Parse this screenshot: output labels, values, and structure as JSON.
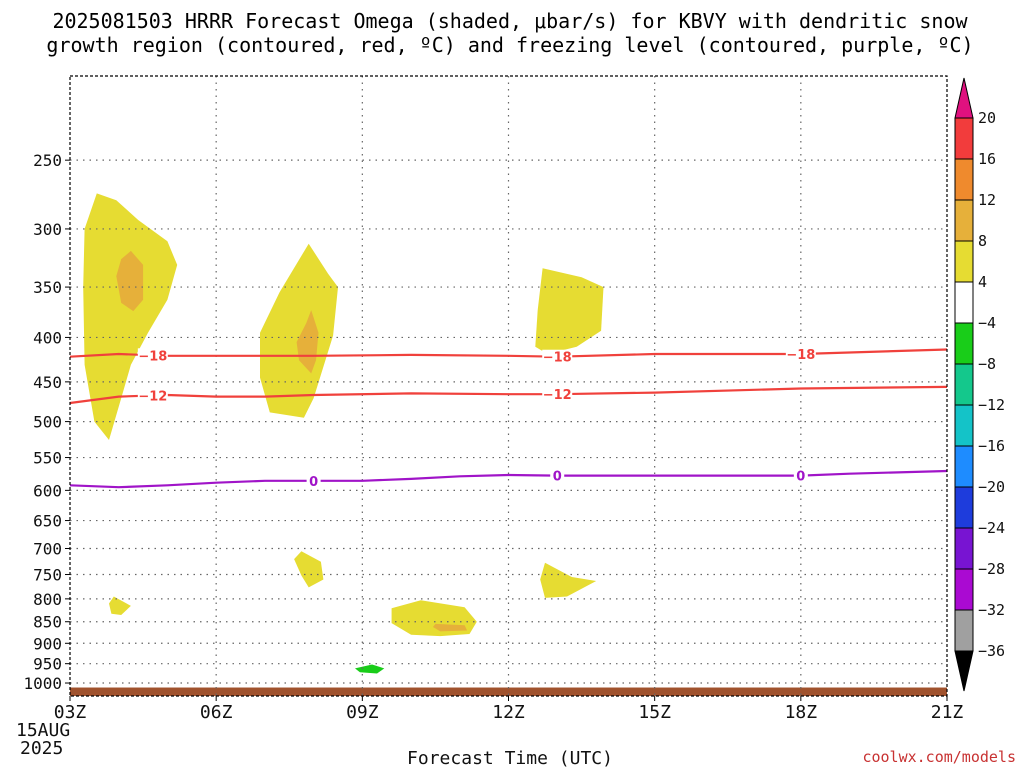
{
  "chart_data": {
    "type": "heatmap",
    "title_lines": [
      "2025081503 HRRR Forecast Omega (shaded, μbar/s) for KBVY with dendritic snow",
      "growth region (contoured, red, ºC) and freezing level (contoured, purple, ºC)"
    ],
    "xlabel": "Forecast Time (UTC)",
    "x_ticks": [
      "03Z",
      "06Z",
      "09Z",
      "12Z",
      "15Z",
      "18Z",
      "21Z"
    ],
    "x_date_lines": [
      "15AUG",
      "2025"
    ],
    "x_range_hours": [
      3,
      21
    ],
    "y_ticks": [
      250,
      300,
      350,
      400,
      450,
      500,
      550,
      600,
      650,
      700,
      750,
      800,
      850,
      900,
      950,
      1000
    ],
    "y_range_hpa": [
      200,
      1035
    ],
    "y_scale": "log",
    "grid": true,
    "colorbar": {
      "ticks": [
        "20",
        "16",
        "12",
        "8",
        "4",
        "−4",
        "−8",
        "−12",
        "−16",
        "−20",
        "−24",
        "−28",
        "−32",
        "−36"
      ],
      "bins": [
        {
          "from": 20,
          "to": 100,
          "color": "#e0117f"
        },
        {
          "from": 16,
          "to": 20,
          "color": "#f23c3c"
        },
        {
          "from": 12,
          "to": 16,
          "color": "#ef8a2d"
        },
        {
          "from": 8,
          "to": 12,
          "color": "#e6b03a"
        },
        {
          "from": 4,
          "to": 8,
          "color": "#e6dc32"
        },
        {
          "from": -4,
          "to": 4,
          "color": "#ffffff"
        },
        {
          "from": -8,
          "to": -4,
          "color": "#19cd19"
        },
        {
          "from": -12,
          "to": -8,
          "color": "#14c88c"
        },
        {
          "from": -16,
          "to": -12,
          "color": "#14c3c8"
        },
        {
          "from": -20,
          "to": -16,
          "color": "#1e8cff"
        },
        {
          "from": -24,
          "to": -20,
          "color": "#1e3cdc"
        },
        {
          "from": -28,
          "to": -24,
          "color": "#7814d2"
        },
        {
          "from": -32,
          "to": -28,
          "color": "#aa0ad2"
        },
        {
          "from": -36,
          "to": -32,
          "color": "#a0a0a0"
        },
        {
          "from": -100,
          "to": -36,
          "color": "#000000"
        }
      ]
    },
    "omega_regions": [
      {
        "omega": 4,
        "points": [
          [
            3.55,
            273
          ],
          [
            3.95,
            278
          ],
          [
            4.4,
            293
          ],
          [
            5.0,
            310
          ],
          [
            5.2,
            330
          ],
          [
            5.0,
            362
          ],
          [
            4.6,
            395
          ],
          [
            4.25,
            430
          ],
          [
            4.05,
            470
          ],
          [
            3.8,
            525
          ],
          [
            3.5,
            500
          ],
          [
            3.3,
            430
          ],
          [
            3.27,
            350
          ],
          [
            3.3,
            300
          ]
        ]
      },
      {
        "omega": 8,
        "points": [
          [
            4.25,
            318
          ],
          [
            4.5,
            330
          ],
          [
            4.5,
            362
          ],
          [
            4.3,
            373
          ],
          [
            4.05,
            365
          ],
          [
            3.95,
            340
          ],
          [
            4.05,
            325
          ]
        ]
      },
      {
        "omega": 4,
        "points": [
          [
            7.9,
            312
          ],
          [
            8.3,
            338
          ],
          [
            8.5,
            350
          ],
          [
            8.4,
            398
          ],
          [
            8.0,
            470
          ],
          [
            7.8,
            495
          ],
          [
            7.1,
            488
          ],
          [
            6.9,
            445
          ],
          [
            6.9,
            395
          ],
          [
            7.3,
            355
          ]
        ]
      },
      {
        "omega": 8,
        "points": [
          [
            7.95,
            372
          ],
          [
            8.1,
            395
          ],
          [
            8.05,
            425
          ],
          [
            7.95,
            440
          ],
          [
            7.7,
            425
          ],
          [
            7.65,
            405
          ],
          [
            7.85,
            385
          ]
        ]
      },
      {
        "omega": 4,
        "points": [
          [
            12.7,
            333
          ],
          [
            13.5,
            341
          ],
          [
            13.95,
            350
          ],
          [
            13.9,
            393
          ],
          [
            13.4,
            410
          ],
          [
            12.8,
            418
          ],
          [
            12.55,
            410
          ],
          [
            12.6,
            372
          ]
        ]
      },
      {
        "omega": -4,
        "points": [
          [
            4.05,
            625
          ],
          [
            4.35,
            672
          ],
          [
            4.15,
            712
          ],
          [
            3.95,
            710
          ],
          [
            3.75,
            672
          ]
        ]
      },
      {
        "omega": -4,
        "points": [
          [
            3.95,
            900
          ],
          [
            4.25,
            912
          ],
          [
            4.4,
            932
          ],
          [
            3.95,
            950
          ],
          [
            3.55,
            948
          ],
          [
            3.6,
            922
          ]
        ]
      },
      {
        "omega": 4,
        "points": [
          [
            7.75,
            705
          ],
          [
            8.15,
            725
          ],
          [
            8.2,
            760
          ],
          [
            7.9,
            776
          ],
          [
            7.75,
            752
          ],
          [
            7.6,
            720
          ]
        ]
      },
      {
        "omega": 4,
        "points": [
          [
            12.75,
            727
          ],
          [
            13.3,
            755
          ],
          [
            13.8,
            763
          ],
          [
            13.2,
            795
          ],
          [
            12.75,
            798
          ],
          [
            12.65,
            760
          ]
        ]
      },
      {
        "omega": 4,
        "points": [
          [
            3.9,
            795
          ],
          [
            4.25,
            815
          ],
          [
            4.05,
            835
          ],
          [
            3.85,
            832
          ],
          [
            3.8,
            810
          ]
        ]
      },
      {
        "omega": -4,
        "points": [
          [
            6.7,
            800
          ],
          [
            7.1,
            812
          ],
          [
            7.45,
            848
          ],
          [
            7.05,
            852
          ],
          [
            6.4,
            842
          ],
          [
            6.1,
            826
          ],
          [
            6.3,
            812
          ]
        ]
      },
      {
        "omega": 4,
        "points": [
          [
            10.2,
            803
          ],
          [
            11.1,
            818
          ],
          [
            11.35,
            850
          ],
          [
            11.2,
            878
          ],
          [
            10.6,
            883
          ],
          [
            10.0,
            880
          ],
          [
            9.6,
            853
          ],
          [
            9.6,
            820
          ]
        ]
      },
      {
        "omega": 8,
        "points": [
          [
            10.5,
            855
          ],
          [
            11.1,
            858
          ],
          [
            11.15,
            870
          ],
          [
            10.6,
            872
          ],
          [
            10.45,
            862
          ]
        ]
      },
      {
        "omega": -4,
        "points": [
          [
            12.1,
            812
          ],
          [
            12.4,
            827
          ],
          [
            12.6,
            862
          ],
          [
            12.3,
            905
          ],
          [
            11.7,
            948
          ],
          [
            11.0,
            962
          ],
          [
            10.0,
            967
          ],
          [
            9.2,
            978
          ],
          [
            8.55,
            978
          ],
          [
            8.4,
            962
          ],
          [
            8.6,
            945
          ],
          [
            9.2,
            935
          ],
          [
            10.0,
            940
          ],
          [
            11.0,
            935
          ],
          [
            11.75,
            922
          ],
          [
            11.85,
            880
          ],
          [
            11.9,
            835
          ]
        ]
      },
      {
        "omega": -8,
        "points": [
          [
            9.2,
            952
          ],
          [
            9.45,
            962
          ],
          [
            9.3,
            975
          ],
          [
            8.95,
            972
          ],
          [
            8.85,
            962
          ]
        ]
      }
    ],
    "temperature_contours": [
      {
        "label": "−18",
        "color": "#f0413c",
        "points": [
          [
            3,
            421
          ],
          [
            4,
            418
          ],
          [
            5,
            420
          ],
          [
            6,
            420
          ],
          [
            7,
            420
          ],
          [
            8,
            420
          ],
          [
            10,
            419
          ],
          [
            12,
            420
          ],
          [
            13,
            421
          ],
          [
            15,
            418
          ],
          [
            18,
            418
          ],
          [
            21,
            413
          ]
        ],
        "label_x": [
          4.7,
          13.0,
          18.0
        ]
      },
      {
        "label": "−12",
        "color": "#f0413c",
        "points": [
          [
            3,
            476
          ],
          [
            4,
            468
          ],
          [
            5,
            466
          ],
          [
            6,
            468
          ],
          [
            7,
            468
          ],
          [
            8,
            466
          ],
          [
            10,
            464
          ],
          [
            12,
            465
          ],
          [
            13,
            465
          ],
          [
            15,
            463
          ],
          [
            18,
            458
          ],
          [
            21,
            456
          ]
        ],
        "label_x": [
          4.7,
          13.0
        ]
      },
      {
        "label": "0",
        "color": "#a014c8",
        "points": [
          [
            3,
            592
          ],
          [
            4,
            595
          ],
          [
            5,
            592
          ],
          [
            6,
            588
          ],
          [
            7,
            585
          ],
          [
            8,
            585
          ],
          [
            9,
            585
          ],
          [
            10,
            582
          ],
          [
            11,
            578
          ],
          [
            12,
            576
          ],
          [
            13,
            577
          ],
          [
            15,
            577
          ],
          [
            17,
            577
          ],
          [
            18,
            577
          ],
          [
            19,
            574
          ],
          [
            21,
            570
          ]
        ],
        "label_x": [
          8.0,
          13.0,
          18.0
        ]
      }
    ],
    "terrain_below_hpa": 1012,
    "terrain_color": "#a0522d"
  },
  "credit": "coolwx.com/models"
}
